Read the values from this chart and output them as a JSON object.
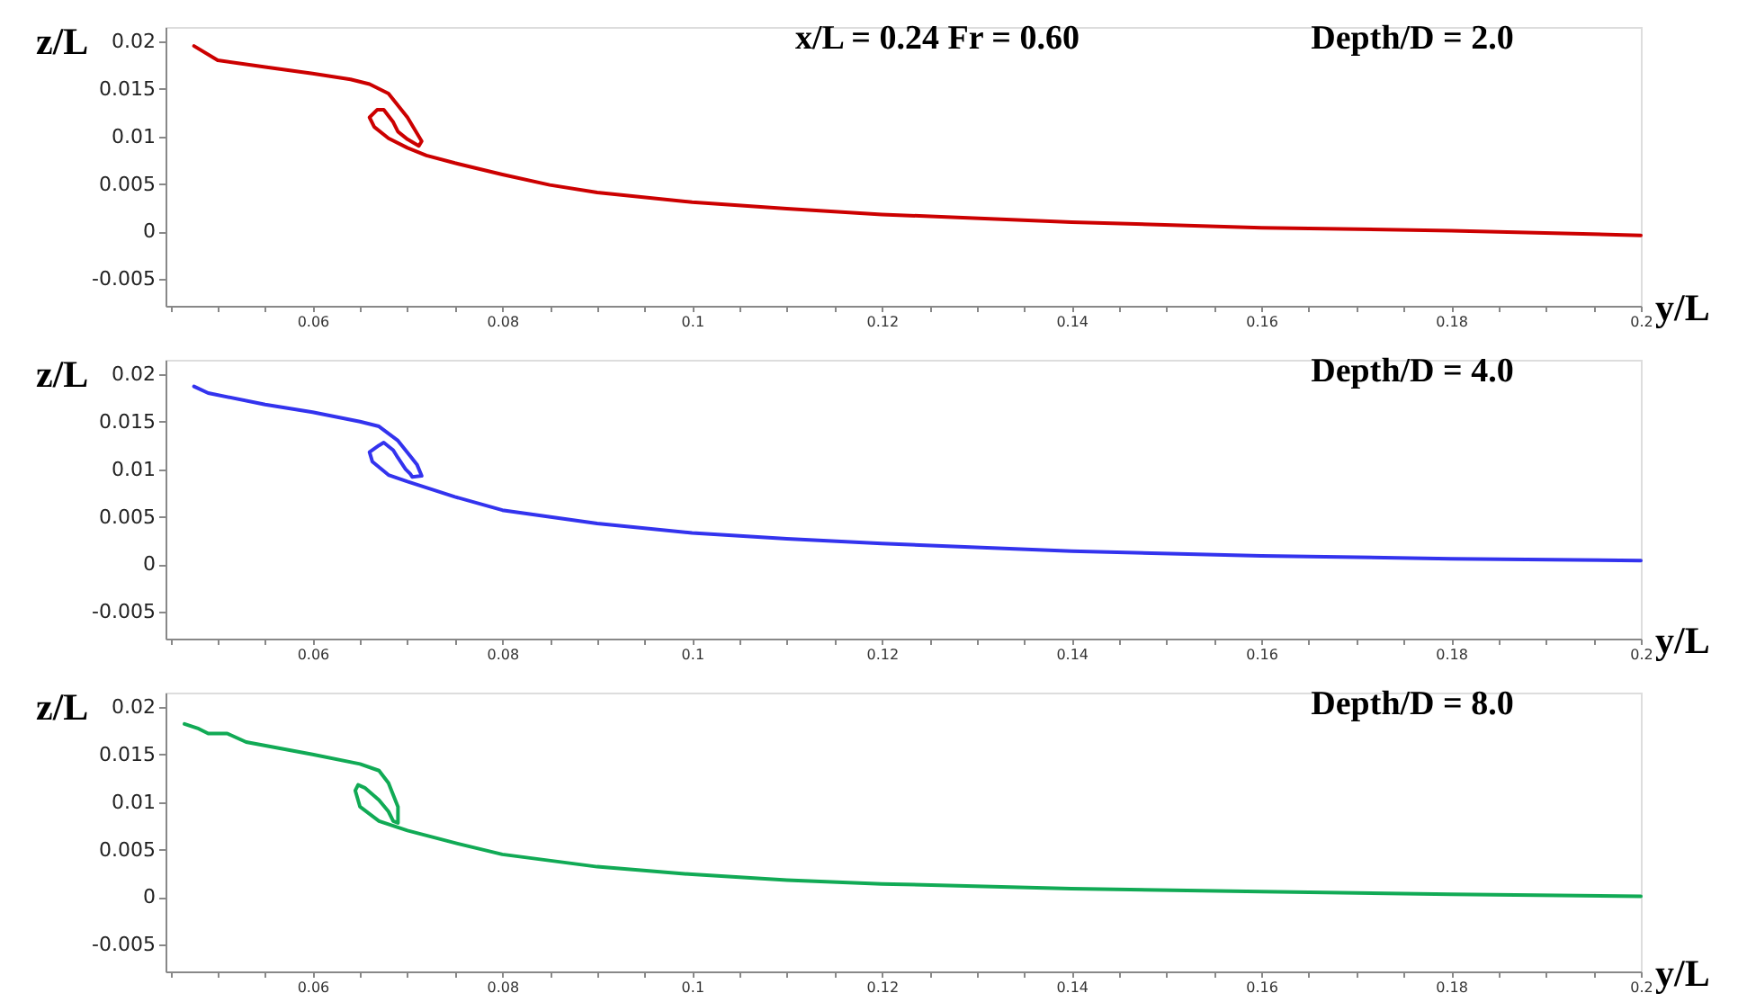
{
  "chart_data": [
    {
      "type": "line",
      "title": "Depth/D = 2.0",
      "annotations": [
        "x/L = 0.24   Fr = 0.60"
      ],
      "xlabel": "y/L",
      "ylabel": "z/L",
      "grid": false,
      "xlim": [
        0.0445,
        0.2
      ],
      "ylim": [
        -0.0078,
        0.0215
      ],
      "xticks": [
        {
          "value": 0.045,
          "label": null
        },
        {
          "value": 0.05,
          "label": null
        },
        {
          "value": 0.055,
          "label": null
        },
        0.06,
        {
          "value": 0.065,
          "label": null
        },
        {
          "value": 0.07,
          "label": null
        },
        {
          "value": 0.075,
          "label": null
        },
        0.08,
        {
          "value": 0.085,
          "label": null
        },
        {
          "value": 0.09,
          "label": null
        },
        {
          "value": 0.095,
          "label": null
        },
        0.1,
        {
          "value": 0.105,
          "label": null
        },
        {
          "value": 0.11,
          "label": null
        },
        {
          "value": 0.115,
          "label": null
        },
        0.12,
        {
          "value": 0.125,
          "label": null
        },
        {
          "value": 0.13,
          "label": null
        },
        {
          "value": 0.135,
          "label": null
        },
        0.14,
        {
          "value": 0.145,
          "label": null
        },
        {
          "value": 0.15,
          "label": null
        },
        {
          "value": 0.155,
          "label": null
        },
        0.16,
        {
          "value": 0.165,
          "label": null
        },
        {
          "value": 0.17,
          "label": null
        },
        {
          "value": 0.175,
          "label": null
        },
        0.18,
        {
          "value": 0.185,
          "label": null
        },
        {
          "value": 0.19,
          "label": null
        },
        {
          "value": 0.195,
          "label": null
        },
        0.2
      ],
      "yticks": [
        -0.005,
        0,
        0.005,
        0.01,
        0.015,
        0.02
      ],
      "series": [
        {
          "color": "#cc0000",
          "x": [
            0.0475,
            0.05,
            0.055,
            0.06,
            0.064,
            0.066,
            0.068,
            0.07,
            0.0715,
            0.0712,
            0.07,
            0.069,
            0.0685,
            0.0675,
            0.0668,
            0.066,
            0.0665,
            0.068,
            0.07,
            0.072,
            0.075,
            0.08,
            0.085,
            0.09,
            0.1,
            0.11,
            0.12,
            0.14,
            0.16,
            0.18,
            0.2
          ],
          "values": [
            0.0195,
            0.018,
            0.0173,
            0.0166,
            0.016,
            0.0155,
            0.0145,
            0.012,
            0.0095,
            0.009,
            0.0097,
            0.0105,
            0.0115,
            0.0128,
            0.0128,
            0.012,
            0.011,
            0.0098,
            0.0088,
            0.008,
            0.0072,
            0.006,
            0.0049,
            0.0041,
            0.0031,
            0.0024,
            0.0018,
            0.001,
            0.0004,
            0.0001,
            -0.0004
          ]
        }
      ]
    },
    {
      "type": "line",
      "title": "Depth/D = 4.0",
      "xlabel": "y/L",
      "ylabel": "z/L",
      "grid": false,
      "xlim": [
        0.0445,
        0.2
      ],
      "ylim": [
        -0.0078,
        0.0215
      ],
      "xticks": [
        {
          "value": 0.045,
          "label": null
        },
        {
          "value": 0.05,
          "label": null
        },
        {
          "value": 0.055,
          "label": null
        },
        0.06,
        {
          "value": 0.065,
          "label": null
        },
        {
          "value": 0.07,
          "label": null
        },
        {
          "value": 0.075,
          "label": null
        },
        0.08,
        {
          "value": 0.085,
          "label": null
        },
        {
          "value": 0.09,
          "label": null
        },
        {
          "value": 0.095,
          "label": null
        },
        0.1,
        {
          "value": 0.105,
          "label": null
        },
        {
          "value": 0.11,
          "label": null
        },
        {
          "value": 0.115,
          "label": null
        },
        0.12,
        {
          "value": 0.125,
          "label": null
        },
        {
          "value": 0.13,
          "label": null
        },
        {
          "value": 0.135,
          "label": null
        },
        0.14,
        {
          "value": 0.145,
          "label": null
        },
        {
          "value": 0.15,
          "label": null
        },
        {
          "value": 0.155,
          "label": null
        },
        0.16,
        {
          "value": 0.165,
          "label": null
        },
        {
          "value": 0.17,
          "label": null
        },
        {
          "value": 0.175,
          "label": null
        },
        0.18,
        {
          "value": 0.185,
          "label": null
        },
        {
          "value": 0.19,
          "label": null
        },
        {
          "value": 0.195,
          "label": null
        },
        0.2
      ],
      "yticks": [
        -0.005,
        0,
        0.005,
        0.01,
        0.015,
        0.02
      ],
      "series": [
        {
          "color": "#3333ee",
          "x": [
            0.0475,
            0.049,
            0.055,
            0.06,
            0.065,
            0.067,
            0.069,
            0.071,
            0.0715,
            0.0705,
            0.0703,
            0.0698,
            0.069,
            0.0685,
            0.0675,
            0.067,
            0.066,
            0.0663,
            0.068,
            0.07,
            0.075,
            0.08,
            0.09,
            0.1,
            0.11,
            0.12,
            0.14,
            0.16,
            0.18,
            0.2
          ],
          "values": [
            0.0187,
            0.018,
            0.0168,
            0.016,
            0.015,
            0.0145,
            0.013,
            0.0105,
            0.0093,
            0.0092,
            0.0095,
            0.01,
            0.0112,
            0.012,
            0.0128,
            0.0125,
            0.0118,
            0.0108,
            0.0094,
            0.0087,
            0.0071,
            0.0057,
            0.0043,
            0.0033,
            0.0027,
            0.0022,
            0.0014,
            0.0009,
            0.0006,
            0.0004
          ]
        }
      ]
    },
    {
      "type": "line",
      "title": "Depth/D = 8.0",
      "xlabel": "y/L",
      "ylabel": "z/L",
      "grid": false,
      "xlim": [
        0.0445,
        0.2
      ],
      "ylim": [
        -0.0078,
        0.0215
      ],
      "xticks": [
        {
          "value": 0.045,
          "label": null
        },
        {
          "value": 0.05,
          "label": null
        },
        {
          "value": 0.055,
          "label": null
        },
        0.06,
        {
          "value": 0.065,
          "label": null
        },
        {
          "value": 0.07,
          "label": null
        },
        {
          "value": 0.075,
          "label": null
        },
        0.08,
        {
          "value": 0.085,
          "label": null
        },
        {
          "value": 0.09,
          "label": null
        },
        {
          "value": 0.095,
          "label": null
        },
        0.1,
        {
          "value": 0.105,
          "label": null
        },
        {
          "value": 0.11,
          "label": null
        },
        {
          "value": 0.115,
          "label": null
        },
        0.12,
        {
          "value": 0.125,
          "label": null
        },
        {
          "value": 0.13,
          "label": null
        },
        {
          "value": 0.135,
          "label": null
        },
        0.14,
        {
          "value": 0.145,
          "label": null
        },
        {
          "value": 0.15,
          "label": null
        },
        {
          "value": 0.155,
          "label": null
        },
        0.16,
        {
          "value": 0.165,
          "label": null
        },
        {
          "value": 0.17,
          "label": null
        },
        {
          "value": 0.175,
          "label": null
        },
        0.18,
        {
          "value": 0.185,
          "label": null
        },
        {
          "value": 0.19,
          "label": null
        },
        {
          "value": 0.195,
          "label": null
        },
        0.2
      ],
      "yticks": [
        -0.005,
        0,
        0.005,
        0.01,
        0.015,
        0.02
      ],
      "series": [
        {
          "color": "#11aa55",
          "x": [
            0.0465,
            0.048,
            0.049,
            0.051,
            0.053,
            0.06,
            0.065,
            0.067,
            0.068,
            0.069,
            0.069,
            0.0685,
            0.068,
            0.067,
            0.0655,
            0.0648,
            0.0645,
            0.065,
            0.067,
            0.07,
            0.075,
            0.08,
            0.09,
            0.1,
            0.11,
            0.12,
            0.14,
            0.16,
            0.18,
            0.2
          ],
          "values": [
            0.0182,
            0.0177,
            0.0172,
            0.0172,
            0.0163,
            0.015,
            0.014,
            0.0133,
            0.012,
            0.0095,
            0.0078,
            0.008,
            0.009,
            0.0102,
            0.0115,
            0.0118,
            0.0112,
            0.0095,
            0.008,
            0.007,
            0.0057,
            0.0045,
            0.0032,
            0.0024,
            0.0018,
            0.0014,
            0.0009,
            0.0006,
            0.0003,
            0.0001
          ]
        }
      ]
    }
  ]
}
